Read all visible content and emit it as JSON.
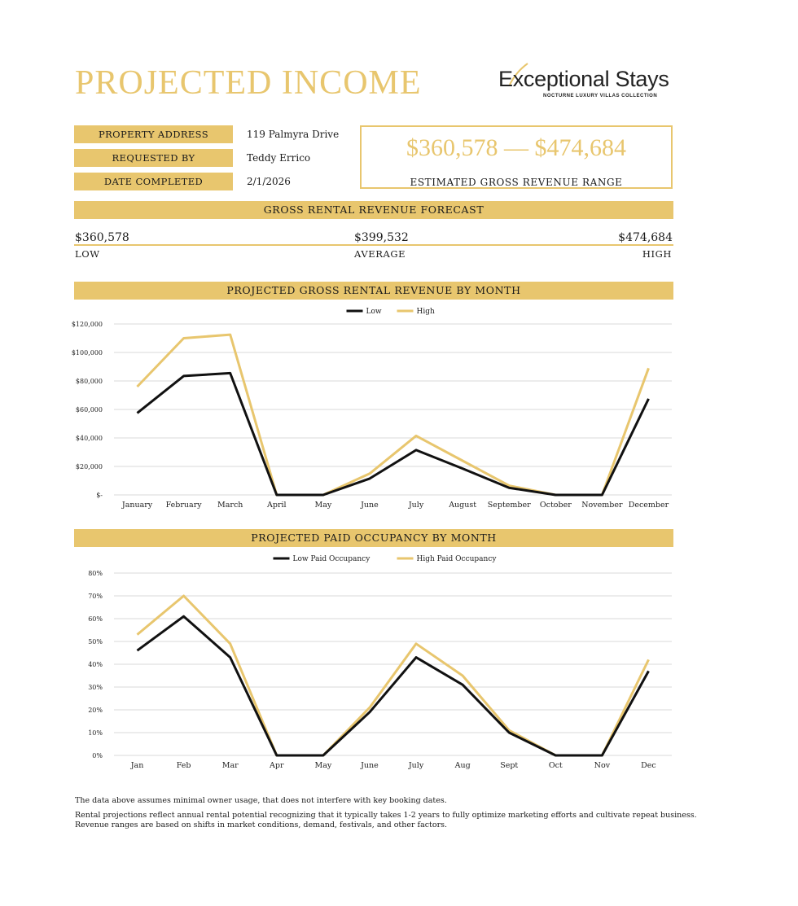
{
  "header": {
    "title": "PROJECTED INCOME"
  },
  "logo": {
    "name": "Exceptional Stays",
    "tagline": "NOCTURNE LUXURY VILLAS COLLECTION"
  },
  "info": [
    {
      "label": "PROPERTY ADDRESS",
      "value": "119 Palmyra Drive"
    },
    {
      "label": "REQUESTED BY",
      "value": "Teddy Errico"
    },
    {
      "label": "DATE COMPLETED",
      "value": "2/1/2026"
    }
  ],
  "range": {
    "text": "$360,578  —  $474,684",
    "caption": "ESTIMATED GROSS REVENUE RANGE"
  },
  "forecast": {
    "heading": "GROSS RENTAL REVENUE FORECAST",
    "low_value": "$360,578",
    "low_label": "LOW",
    "avg_value": "$399,532",
    "avg_label": "AVERAGE",
    "high_value": "$474,684",
    "high_label": "HIGH"
  },
  "colors": {
    "gold": "#e8c66e",
    "black": "#111111",
    "grid": "#d9d9d9"
  },
  "chart_data": [
    {
      "type": "line",
      "title": "PROJECTED GROSS RENTAL REVENUE BY MONTH",
      "categories": [
        "January",
        "February",
        "March",
        "April",
        "May",
        "June",
        "July",
        "August",
        "September",
        "October",
        "November",
        "December"
      ],
      "series": [
        {
          "name": "Low",
          "color": "#111111",
          "values": [
            57500,
            83500,
            85500,
            0,
            0,
            11500,
            31500,
            18500,
            5000,
            0,
            0,
            67500
          ]
        },
        {
          "name": "High",
          "color": "#e8c66e",
          "values": [
            76000,
            110000,
            112500,
            0,
            0,
            15000,
            41500,
            24000,
            6500,
            0,
            0,
            89000
          ]
        }
      ],
      "ylim": [
        0,
        120000
      ],
      "yticks": [
        0,
        20000,
        40000,
        60000,
        80000,
        100000,
        120000
      ],
      "ytick_labels": [
        "$-",
        "$20,000",
        "$40,000",
        "$60,000",
        "$80,000",
        "$100,000",
        "$120,000"
      ],
      "grid": true,
      "legend": "top-center"
    },
    {
      "type": "line",
      "title": "PROJECTED PAID OCCUPANCY BY MONTH",
      "categories": [
        "Jan",
        "Feb",
        "Mar",
        "Apr",
        "May",
        "June",
        "July",
        "Aug",
        "Sept",
        "Oct",
        "Nov",
        "Dec"
      ],
      "series": [
        {
          "name": "Low Paid Occupancy",
          "color": "#111111",
          "values": [
            46,
            61,
            43,
            0,
            0,
            19,
            43,
            31,
            10,
            0,
            0,
            37
          ]
        },
        {
          "name": "High Paid Occupancy",
          "color": "#e8c66e",
          "values": [
            53,
            70,
            49,
            0,
            0,
            21,
            49,
            35,
            11,
            0,
            0,
            42
          ]
        }
      ],
      "ylim": [
        0,
        80
      ],
      "yticks": [
        0,
        10,
        20,
        30,
        40,
        50,
        60,
        70,
        80
      ],
      "ytick_labels": [
        "0%",
        "10%",
        "20%",
        "30%",
        "40%",
        "50%",
        "60%",
        "70%",
        "80%"
      ],
      "grid": true,
      "legend": "top-center"
    }
  ],
  "notes": [
    "The data above assumes minimal owner usage, that does not interfere with key booking dates.",
    "Rental projections reflect annual rental potential recognizing that it typically takes 1-2 years to fully optimize marketing efforts and cultivate repeat business.",
    "Revenue ranges are based on shifts in market conditions, demand, festivals, and other factors."
  ]
}
